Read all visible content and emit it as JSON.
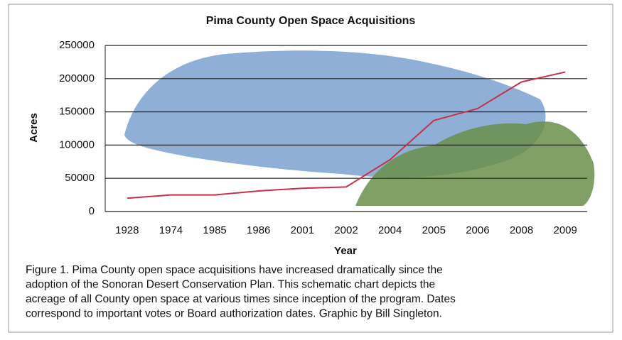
{
  "chart_data": {
    "type": "line",
    "title": "Pima County Open Space Acquisitions",
    "x_label": "Year",
    "y_label": "Acres",
    "categories": [
      "1928",
      "1974",
      "1985",
      "1986",
      "2001",
      "2002",
      "2004",
      "2005",
      "2006",
      "2008",
      "2009"
    ],
    "values": [
      20000,
      25000,
      25000,
      31000,
      35000,
      37000,
      78000,
      137000,
      155000,
      195000,
      210000
    ],
    "color": "#c8304a",
    "ylim": [
      0,
      250000
    ],
    "yticks": [
      0,
      50000,
      100000,
      150000,
      200000,
      250000
    ],
    "grid": true,
    "caption": [
      "Figure 1.  Pima County open space acquisitions have increased dramatically since the",
      "adoption of the Sonoran Desert Conservation Plan.  This schematic chart depicts the",
      "acreage of all County open space at various times since inception of the program. Dates",
      "correspond to important votes or Board authorization dates.  Graphic by Bill Singleton."
    ]
  }
}
